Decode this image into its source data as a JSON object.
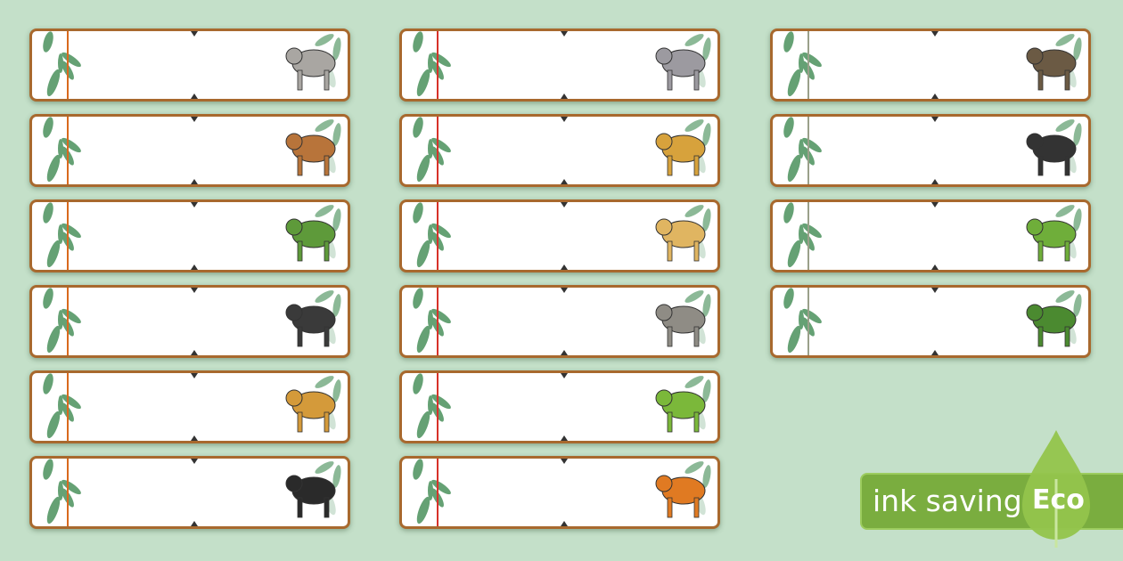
{
  "colors": {
    "background": "#c4e0c9",
    "border": "#a8692e",
    "badge": "#7aad3f",
    "leaf": "#3f8a52"
  },
  "columns": [
    {
      "line_color": "#d9691e",
      "cards": [
        {
          "icon": "elephant-icon",
          "color": "#a9a6a2"
        },
        {
          "icon": "antelope-icon",
          "color": "#b8743a"
        },
        {
          "icon": "crocodile-icon",
          "color": "#5e9a3a"
        },
        {
          "icon": "chimpanzee-icon",
          "color": "#3a3a3a"
        },
        {
          "icon": "giraffe-icon",
          "color": "#d49a3a"
        },
        {
          "icon": "gorilla-icon",
          "color": "#2a2a2a"
        }
      ]
    },
    {
      "line_color": "#d8322a",
      "cards": [
        {
          "icon": "hippo-icon",
          "color": "#9c9aa0"
        },
        {
          "icon": "leopard-icon",
          "color": "#d7a23c"
        },
        {
          "icon": "lion-icon",
          "color": "#e0b561"
        },
        {
          "icon": "rhino-icon",
          "color": "#8f8c85"
        },
        {
          "icon": "snake-icon",
          "color": "#7bb83a"
        },
        {
          "icon": "tiger-icon",
          "color": "#e07a22"
        }
      ]
    },
    {
      "line_color": "#9aa08a",
      "cards": [
        {
          "icon": "vulture-icon",
          "color": "#6b5a44"
        },
        {
          "icon": "zebra-icon",
          "color": "#333333"
        },
        {
          "icon": "leaf-icon",
          "color": "#6fae3a"
        },
        {
          "icon": "tree-icon",
          "color": "#4b8a30"
        }
      ]
    }
  ],
  "badge": {
    "text": "ink saving",
    "eco": "Eco"
  }
}
